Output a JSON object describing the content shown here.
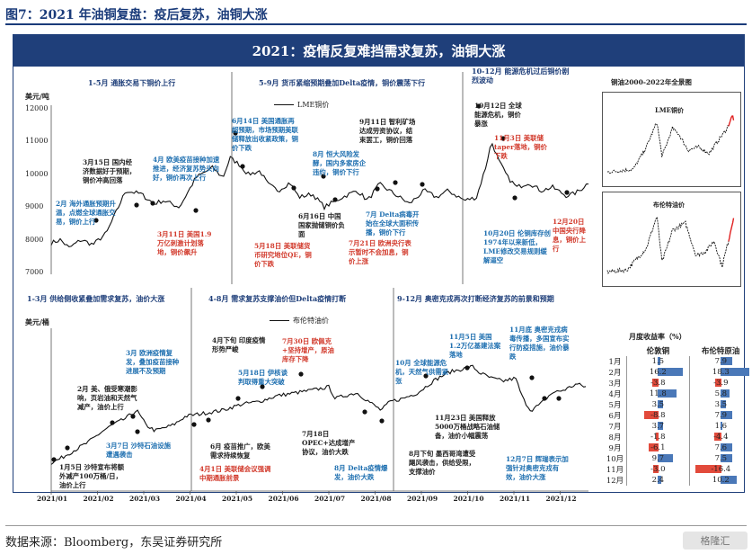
{
  "figure_title": "图7：2021 年油铜复盘：疫后复苏，油铜大涨",
  "banner_title": "2021：疫情反复难挡需求复苏，油铜大涨",
  "source": "数据来源：Bloomberg，东吴证券研究所",
  "watermark": "格隆汇",
  "colors": {
    "navy": "#1f3f7a",
    "blue_text": "#1e6fb0",
    "red_text": "#d23b2d",
    "line": "#111111",
    "bar_red": "#e24a3b",
    "bar_blue": "#4a78b8"
  },
  "copper_panel": {
    "unit": "美元/吨",
    "legend": "LME铜价",
    "y_ticks": [
      "12000",
      "11000",
      "10000",
      "9000",
      "8000",
      "7000"
    ],
    "periods": [
      "1-5月  通胀交易下铜价上行",
      "5-9月  货币紧缩预期叠加Delta疫情，铜价震荡下行",
      "10-12月  能源危机过后铜价剧烈波动"
    ],
    "annotations": [
      {
        "text": "2月 海外通胀预期升温，点燃全球通胀交易，铜价上行",
        "color": "blue"
      },
      {
        "text": "3月15日 国内经济数据好于预期，铜价冲高回落",
        "color": "blk"
      },
      {
        "text": "4月 欧美疫苗接种加速推进，经济复苏势头向好，铜价再次上行",
        "color": "blue"
      },
      {
        "text": "3月11日 美国1.9万亿刺激计划落地，铜价飙升",
        "color": "red"
      },
      {
        "text": "6月14日 美国通胀再超预期，市场预期美联储释放出收紧政策，铜价下跌",
        "color": "blue"
      },
      {
        "text": "5月18日 美联储货币研究地位QE，铜价下跌",
        "color": "red"
      },
      {
        "text": "6月16日 中国国家抛储铜价负面",
        "color": "blk"
      },
      {
        "text": "8月 恒大风险发酵，国内多家房企违约，铜价下行",
        "color": "blue"
      },
      {
        "text": "9月11日 智利矿场达成劳资协议，结束罢工，铜价回落",
        "color": "blk"
      },
      {
        "text": "7月 Delta病毒开始在全球大面积传播，铜价下行",
        "color": "blue"
      },
      {
        "text": "7月21日 欧洲央行表示暂时不会加息，铜价上涨",
        "color": "red"
      },
      {
        "text": "10月12日 全球能源危机，铜价暴涨",
        "color": "blk"
      },
      {
        "text": "11月3日 美联储taper落地，铜价下跌",
        "color": "red"
      },
      {
        "text": "10月20日 伦铜库存创1974年以来新低，LME修改交易规则缓解逼空",
        "color": "blue"
      },
      {
        "text": "12月20日 中国央行降息，铜价上行",
        "color": "red"
      }
    ]
  },
  "oil_panel": {
    "unit": "美元/桶",
    "legend": "布伦特油价",
    "periods": [
      "1-3月  供给侧收紧叠加需求复苏，油价大涨",
      "4-8月  需求复苏支撑油价但Delta疫情打断",
      "9-12月  奥密克戎再次打断经济复苏的前景和预期"
    ],
    "annotations": [
      {
        "text": "2月 美、俄受寒潮影响，页岩油和天然气减产，油价上行",
        "color": "blk"
      },
      {
        "text": "3月 欧洲疫情复发，叠加疫苗接种进展不及预期",
        "color": "blue"
      },
      {
        "text": "1月5日 沙特宣布将额外减产100万桶/日，油价上行",
        "color": "blk"
      },
      {
        "text": "3月7日 沙特石油设施遭遇袭击",
        "color": "blue"
      },
      {
        "text": "4月下旬 印度疫情形势严峻",
        "color": "blk"
      },
      {
        "text": "7月30日 欧佩克+坚持增产，原油库存下降",
        "color": "red"
      },
      {
        "text": "5月18日 伊核谈判取得重大突破",
        "color": "blue"
      },
      {
        "text": "6月 疫苗推广，欧美需求持续恢复",
        "color": "blk"
      },
      {
        "text": "4月1日 美联储会议强调中期通胀前景",
        "color": "red"
      },
      {
        "text": "7月18日 OPEC+达成增产协议，油价大跌",
        "color": "blk"
      },
      {
        "text": "8月 Delta疫情爆发，油价大跌",
        "color": "blue"
      },
      {
        "text": "10月 全球能源危机，天然气供需紧张",
        "color": "blue"
      },
      {
        "text": "11月5日 美国1.2万亿基建法案落地",
        "color": "blue"
      },
      {
        "text": "11月底 奥密克戎病毒传播，多国宣布实行防疫措施，油价暴跌",
        "color": "blue"
      },
      {
        "text": "11月23日 美国释放5000万桶战略石油储备，油价小幅震荡",
        "color": "blk"
      },
      {
        "text": "8月下旬 墨西哥湾遭受飓风袭击，供给受限，支撑油价",
        "color": "blk"
      },
      {
        "text": "12月7日 辉瑞表示加强针对奥密克戎有效，油价大涨",
        "color": "blue"
      }
    ]
  },
  "x_ticks": [
    "2021/01",
    "2021/02",
    "2021/03",
    "2021/04",
    "2021/05",
    "2021/06",
    "2021/07",
    "2021/08",
    "2021/09",
    "2021/10",
    "2021/11",
    "2021/12"
  ],
  "mini_charts": {
    "title": "铜油2000-2022年全景图",
    "copper_label": "LME铜价",
    "oil_label": "布伦特油价"
  },
  "monthly_table": {
    "title": "月度收益率（%）",
    "headers": [
      "",
      "伦敦铜",
      "布伦特原油"
    ],
    "rows": [
      [
        "1月",
        "1.5",
        "7.9"
      ],
      [
        "2月",
        "16.2",
        "18.3"
      ],
      [
        "3月",
        "-3.8",
        "-3.9"
      ],
      [
        "4月",
        "11.8",
        "5.8"
      ],
      [
        "5月",
        "3.5",
        "3.5"
      ],
      [
        "6月",
        "-8.8",
        "7.9"
      ],
      [
        "7月",
        "3.7",
        "1.6"
      ],
      [
        "8月",
        "-1.8",
        "-4.4"
      ],
      [
        "9月",
        "-6.1",
        "7.6"
      ],
      [
        "10月",
        "9.7",
        "7.5"
      ],
      [
        "11月",
        "-3.0",
        "-16.4"
      ],
      [
        "12月",
        "2.4",
        "10.2"
      ]
    ]
  },
  "chart_data": [
    {
      "type": "line",
      "title": "",
      "series": [
        {
          "name": "LME铜价",
          "x": [
            "2021/01",
            "2021/02",
            "2021/03",
            "2021/04",
            "2021/05",
            "2021/06",
            "2021/07",
            "2021/08",
            "2021/09",
            "2021/10",
            "2021/11",
            "2021/12"
          ],
          "values": [
            7900,
            7850,
            8750,
            8950,
            10000,
            10200,
            9500,
            9400,
            9300,
            9800,
            9700,
            9550
          ]
        }
      ],
      "ylabel": "美元/吨",
      "ylim": [
        7000,
        12000
      ]
    },
    {
      "type": "line",
      "title": "",
      "series": [
        {
          "name": "布伦特油价",
          "x": [
            "2021/01",
            "2021/02",
            "2021/03",
            "2021/04",
            "2021/05",
            "2021/06",
            "2021/07",
            "2021/08",
            "2021/09",
            "2021/10",
            "2021/11",
            "2021/12"
          ],
          "values": [
            51,
            56,
            66,
            64,
            68,
            73,
            76,
            70,
            72,
            83,
            80,
            78
          ]
        }
      ],
      "ylabel": "美元/桶"
    },
    {
      "type": "bar",
      "title": "",
      "categories": [
        "1月",
        "2月",
        "3月",
        "4月",
        "5月",
        "6月",
        "7月",
        "8月",
        "9月",
        "10月",
        "11月",
        "12月"
      ],
      "series": [
        {
          "name": "伦敦铜",
          "values": [
            1.5,
            16.2,
            -3.8,
            11.8,
            3.5,
            -8.8,
            3.7,
            -1.8,
            -6.1,
            9.7,
            -3.0,
            2.4
          ]
        },
        {
          "name": "布伦特原油",
          "values": [
            7.9,
            18.3,
            -3.9,
            5.8,
            3.5,
            7.9,
            1.6,
            -4.4,
            7.6,
            7.5,
            -16.4,
            10.2
          ]
        }
      ]
    }
  ]
}
